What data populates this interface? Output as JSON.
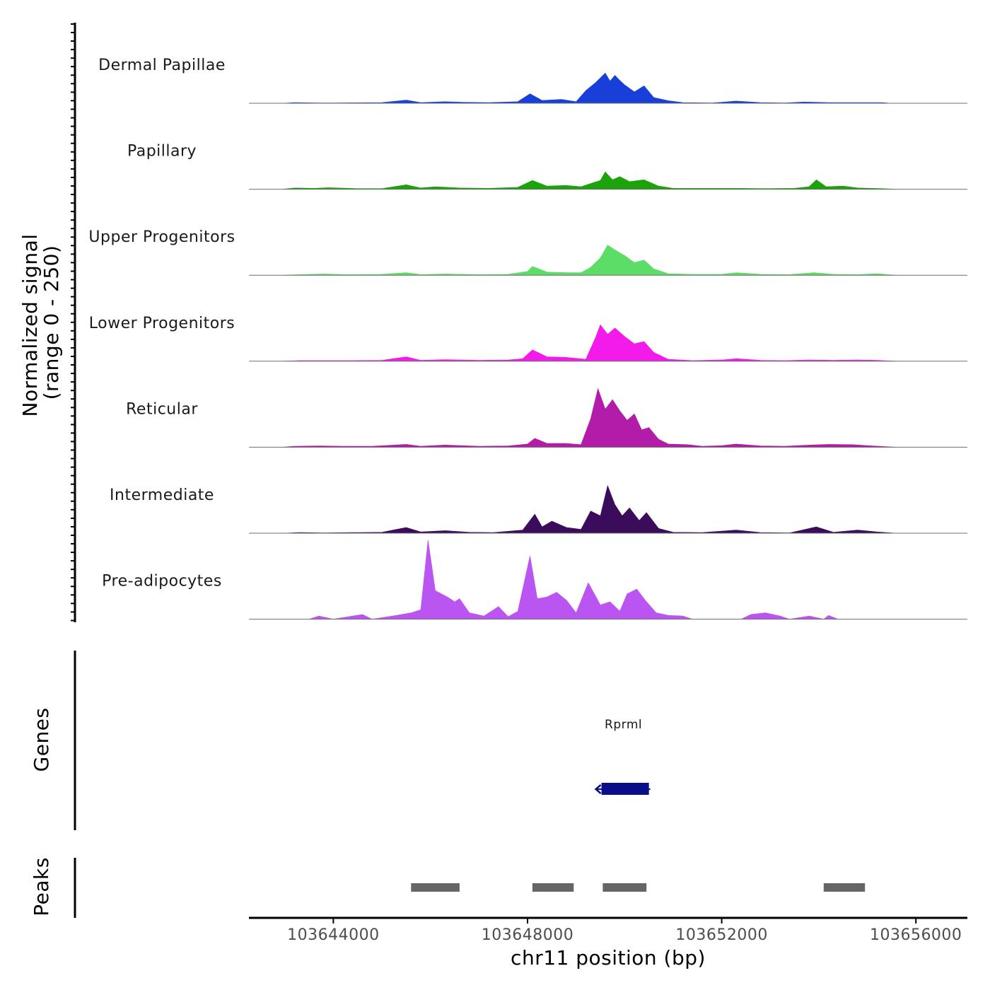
{
  "chart_data": {
    "type": "area",
    "title": "",
    "chromosome": "chr11",
    "xlabel": "chr11 position (bp)",
    "xlim": [
      103642260,
      103657060
    ],
    "x_ticks": [
      103644000,
      103648000,
      103652000,
      103656000
    ],
    "x_tick_labels": [
      "103644000",
      "103648000",
      "103652000",
      "103656000"
    ],
    "signal_axis": {
      "label_line1": "Normalized signal",
      "label_line2": "(range 0 - 250)",
      "ylim": [
        0,
        250
      ]
    },
    "series": [
      {
        "name": "Dermal Papillae",
        "color": "#1840D8",
        "values": [
          [
            103642950,
            0
          ],
          [
            103643200,
            2
          ],
          [
            103643700,
            1
          ],
          [
            103644000,
            1
          ],
          [
            103645000,
            2
          ],
          [
            103645500,
            10
          ],
          [
            103645800,
            2
          ],
          [
            103646300,
            5
          ],
          [
            103646700,
            3
          ],
          [
            103647200,
            2
          ],
          [
            103647800,
            5
          ],
          [
            103648050,
            30
          ],
          [
            103648300,
            9
          ],
          [
            103648700,
            12
          ],
          [
            103649000,
            5
          ],
          [
            103649200,
            40
          ],
          [
            103649400,
            65
          ],
          [
            103649600,
            95
          ],
          [
            103649700,
            70
          ],
          [
            103649800,
            88
          ],
          [
            103649900,
            72
          ],
          [
            103650000,
            58
          ],
          [
            103650200,
            36
          ],
          [
            103650400,
            55
          ],
          [
            103650600,
            18
          ],
          [
            103650900,
            8
          ],
          [
            103651200,
            2
          ],
          [
            103651800,
            1
          ],
          [
            103652300,
            7
          ],
          [
            103652800,
            2
          ],
          [
            103653300,
            1
          ],
          [
            103653700,
            4
          ],
          [
            103654200,
            2
          ],
          [
            103654800,
            2
          ],
          [
            103655300,
            2
          ],
          [
            103655500,
            0
          ]
        ]
      },
      {
        "name": "Papillary",
        "color": "#1CA30C",
        "values": [
          [
            103642950,
            0
          ],
          [
            103643200,
            4
          ],
          [
            103643600,
            3
          ],
          [
            103643900,
            5
          ],
          [
            103644500,
            2
          ],
          [
            103645000,
            2
          ],
          [
            103645500,
            14
          ],
          [
            103645800,
            4
          ],
          [
            103646100,
            8
          ],
          [
            103646600,
            4
          ],
          [
            103647200,
            3
          ],
          [
            103647800,
            6
          ],
          [
            103648100,
            28
          ],
          [
            103648400,
            10
          ],
          [
            103648800,
            12
          ],
          [
            103649100,
            8
          ],
          [
            103649300,
            18
          ],
          [
            103649500,
            28
          ],
          [
            103649600,
            55
          ],
          [
            103649750,
            30
          ],
          [
            103649900,
            40
          ],
          [
            103650100,
            24
          ],
          [
            103650400,
            30
          ],
          [
            103650700,
            10
          ],
          [
            103651000,
            3
          ],
          [
            103651600,
            3
          ],
          [
            103652300,
            3
          ],
          [
            103652900,
            2
          ],
          [
            103653500,
            3
          ],
          [
            103653800,
            8
          ],
          [
            103653950,
            30
          ],
          [
            103654150,
            8
          ],
          [
            103654500,
            10
          ],
          [
            103654800,
            4
          ],
          [
            103655300,
            2
          ],
          [
            103655600,
            0
          ]
        ]
      },
      {
        "name": "Upper Progenitors",
        "color": "#5BDD68",
        "values": [
          [
            103642950,
            0
          ],
          [
            103643300,
            2
          ],
          [
            103643800,
            4
          ],
          [
            103644300,
            2
          ],
          [
            103645000,
            3
          ],
          [
            103645500,
            8
          ],
          [
            103645800,
            2
          ],
          [
            103646300,
            4
          ],
          [
            103647000,
            2
          ],
          [
            103647600,
            3
          ],
          [
            103648000,
            12
          ],
          [
            103648100,
            28
          ],
          [
            103648400,
            10
          ],
          [
            103648800,
            8
          ],
          [
            103649100,
            8
          ],
          [
            103649300,
            25
          ],
          [
            103649500,
            55
          ],
          [
            103649650,
            95
          ],
          [
            103649800,
            80
          ],
          [
            103650000,
            62
          ],
          [
            103650200,
            40
          ],
          [
            103650400,
            48
          ],
          [
            103650600,
            20
          ],
          [
            103650900,
            5
          ],
          [
            103651400,
            3
          ],
          [
            103652000,
            3
          ],
          [
            103652300,
            8
          ],
          [
            103652800,
            3
          ],
          [
            103653400,
            2
          ],
          [
            103653900,
            8
          ],
          [
            103654300,
            3
          ],
          [
            103654800,
            2
          ],
          [
            103655200,
            5
          ],
          [
            103655600,
            0
          ]
        ]
      },
      {
        "name": "Lower Progenitors",
        "color": "#F21BEA",
        "values": [
          [
            103642950,
            0
          ],
          [
            103643300,
            2
          ],
          [
            103643800,
            2
          ],
          [
            103644400,
            2
          ],
          [
            103645000,
            3
          ],
          [
            103645500,
            14
          ],
          [
            103645800,
            3
          ],
          [
            103646300,
            5
          ],
          [
            103647000,
            3
          ],
          [
            103647600,
            4
          ],
          [
            103647900,
            8
          ],
          [
            103648100,
            36
          ],
          [
            103648400,
            14
          ],
          [
            103648800,
            12
          ],
          [
            103649200,
            6
          ],
          [
            103649400,
            75
          ],
          [
            103649500,
            115
          ],
          [
            103649650,
            85
          ],
          [
            103649800,
            105
          ],
          [
            103650000,
            78
          ],
          [
            103650200,
            55
          ],
          [
            103650400,
            62
          ],
          [
            103650600,
            28
          ],
          [
            103650900,
            6
          ],
          [
            103651400,
            2
          ],
          [
            103652000,
            4
          ],
          [
            103652300,
            8
          ],
          [
            103652800,
            3
          ],
          [
            103653300,
            2
          ],
          [
            103653800,
            4
          ],
          [
            103654300,
            3
          ],
          [
            103654800,
            4
          ],
          [
            103655200,
            3
          ],
          [
            103655600,
            0
          ]
        ]
      },
      {
        "name": "Reticular",
        "color": "#B21CA8",
        "values": [
          [
            103642950,
            0
          ],
          [
            103643200,
            3
          ],
          [
            103643700,
            4
          ],
          [
            103644200,
            3
          ],
          [
            103644800,
            3
          ],
          [
            103645500,
            9
          ],
          [
            103645800,
            3
          ],
          [
            103646300,
            7
          ],
          [
            103647000,
            3
          ],
          [
            103647600,
            4
          ],
          [
            103648000,
            10
          ],
          [
            103648150,
            28
          ],
          [
            103648400,
            12
          ],
          [
            103648800,
            12
          ],
          [
            103649100,
            8
          ],
          [
            103649300,
            90
          ],
          [
            103649450,
            185
          ],
          [
            103649600,
            120
          ],
          [
            103649750,
            150
          ],
          [
            103649900,
            115
          ],
          [
            103650050,
            85
          ],
          [
            103650200,
            105
          ],
          [
            103650350,
            55
          ],
          [
            103650500,
            62
          ],
          [
            103650700,
            25
          ],
          [
            103650900,
            10
          ],
          [
            103651300,
            8
          ],
          [
            103651600,
            3
          ],
          [
            103652000,
            5
          ],
          [
            103652300,
            10
          ],
          [
            103652800,
            4
          ],
          [
            103653300,
            3
          ],
          [
            103653700,
            6
          ],
          [
            103654200,
            9
          ],
          [
            103654700,
            8
          ],
          [
            103655000,
            5
          ],
          [
            103655600,
            0
          ]
        ]
      },
      {
        "name": "Intermediate",
        "color": "#3B0C5C",
        "values": [
          [
            103642950,
            0
          ],
          [
            103643300,
            2
          ],
          [
            103643800,
            1
          ],
          [
            103644400,
            2
          ],
          [
            103645000,
            3
          ],
          [
            103645500,
            18
          ],
          [
            103645800,
            4
          ],
          [
            103646300,
            8
          ],
          [
            103646800,
            3
          ],
          [
            103647300,
            2
          ],
          [
            103647900,
            10
          ],
          [
            103648150,
            60
          ],
          [
            103648300,
            20
          ],
          [
            103648500,
            38
          ],
          [
            103648800,
            18
          ],
          [
            103649100,
            12
          ],
          [
            103649300,
            70
          ],
          [
            103649500,
            55
          ],
          [
            103649650,
            150
          ],
          [
            103649800,
            90
          ],
          [
            103649950,
            55
          ],
          [
            103650100,
            80
          ],
          [
            103650300,
            40
          ],
          [
            103650450,
            65
          ],
          [
            103650700,
            15
          ],
          [
            103651000,
            3
          ],
          [
            103651600,
            2
          ],
          [
            103652300,
            10
          ],
          [
            103652800,
            2
          ],
          [
            103653400,
            1
          ],
          [
            103653950,
            20
          ],
          [
            103654300,
            3
          ],
          [
            103654800,
            10
          ],
          [
            103655200,
            4
          ],
          [
            103655600,
            0
          ]
        ]
      },
      {
        "name": "Pre-adipocytes",
        "color": "#BB55F2",
        "values": [
          [
            103643500,
            0
          ],
          [
            103643700,
            10
          ],
          [
            103644000,
            0
          ],
          [
            103644600,
            15
          ],
          [
            103644800,
            0
          ],
          [
            103645300,
            12
          ],
          [
            103645600,
            20
          ],
          [
            103645800,
            30
          ],
          [
            103645950,
            250
          ],
          [
            103646100,
            90
          ],
          [
            103646350,
            70
          ],
          [
            103646500,
            55
          ],
          [
            103646600,
            65
          ],
          [
            103646800,
            20
          ],
          [
            103647100,
            10
          ],
          [
            103647400,
            40
          ],
          [
            103647600,
            8
          ],
          [
            103647800,
            25
          ],
          [
            103648050,
            200
          ],
          [
            103648200,
            65
          ],
          [
            103648400,
            70
          ],
          [
            103648600,
            85
          ],
          [
            103648800,
            60
          ],
          [
            103649000,
            20
          ],
          [
            103649250,
            115
          ],
          [
            103649500,
            45
          ],
          [
            103649700,
            55
          ],
          [
            103649900,
            25
          ],
          [
            103650050,
            80
          ],
          [
            103650250,
            95
          ],
          [
            103650450,
            55
          ],
          [
            103650650,
            20
          ],
          [
            103650900,
            12
          ],
          [
            103651200,
            10
          ],
          [
            103651400,
            0
          ],
          [
            103652400,
            0
          ],
          [
            103652600,
            15
          ],
          [
            103652900,
            20
          ],
          [
            103653200,
            10
          ],
          [
            103653400,
            0
          ],
          [
            103653800,
            10
          ],
          [
            103654100,
            0
          ],
          [
            103654200,
            12
          ],
          [
            103654400,
            0
          ]
        ]
      }
    ],
    "genes": [
      {
        "name": "Rprml",
        "start": 103649450,
        "end": 103650500,
        "strand": "-",
        "color": "#0A0D88",
        "track_label": "Genes"
      }
    ],
    "peaks": {
      "track_label": "Peaks",
      "color": "#666666",
      "intervals": [
        [
          103645600,
          103646600
        ],
        [
          103648100,
          103648950
        ],
        [
          103649550,
          103650450
        ],
        [
          103654100,
          103654950
        ]
      ]
    }
  }
}
